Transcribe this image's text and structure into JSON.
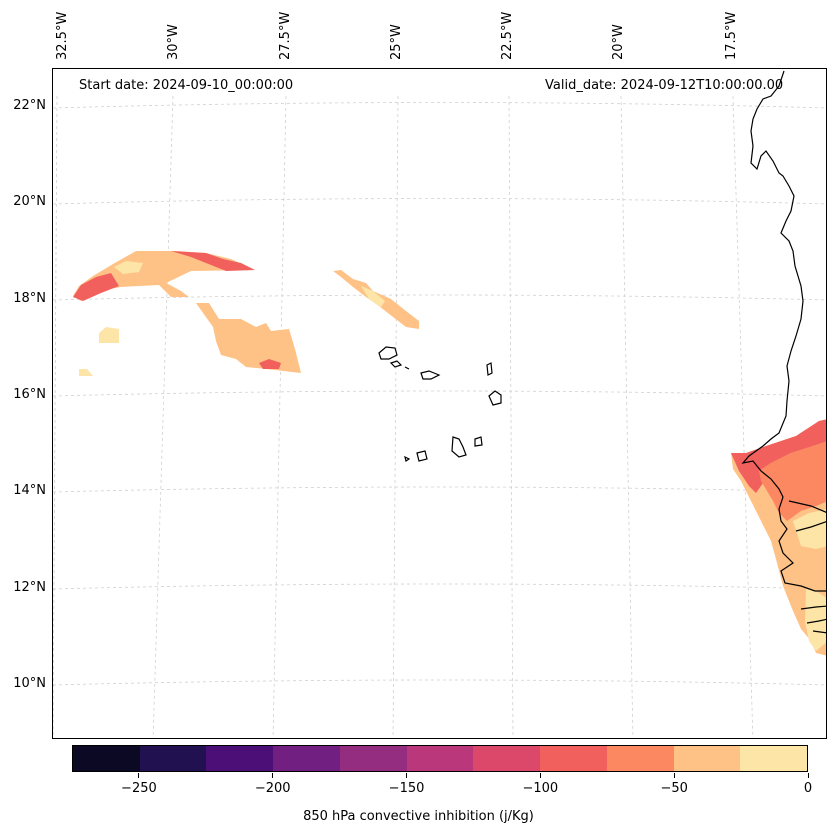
{
  "map": {
    "projection_labels": {
      "lon": [
        "32.5°W",
        "30°W",
        "27.5°W",
        "25°W",
        "22.5°W",
        "20°W",
        "17.5°W"
      ],
      "lat": [
        "22°N",
        "20°N",
        "18°N",
        "16°N",
        "14°N",
        "12°N",
        "10°N"
      ]
    },
    "start_date": "Start date: 2024-09-10_00:00:00",
    "valid_date": "Valid_date: 2024-09-12T10:00:00.00",
    "variable": "850 hPa convective inhibition (j/Kg)"
  },
  "colorbar": {
    "title": "850 hPa convective inhibition (j/Kg)",
    "tick_labels": [
      "−250",
      "−200",
      "−150",
      "−100",
      "−50",
      "0"
    ],
    "tick_values": [
      -250,
      -200,
      -150,
      -100,
      -50,
      0
    ],
    "range": [
      -275,
      0
    ],
    "colors": [
      "#0b0924",
      "#221150",
      "#4c0f77",
      "#711f81",
      "#942c80",
      "#b9377a",
      "#dc4869",
      "#f1605d",
      "#fb8861",
      "#fec287",
      "#fde5a7"
    ]
  },
  "colors": {
    "cin_0_to_m25": "#fde5a7",
    "cin_m25_to_m50": "#fec287",
    "cin_m50_to_m75": "#fb8861",
    "cin_m75_to_m100": "#f1605d"
  }
}
